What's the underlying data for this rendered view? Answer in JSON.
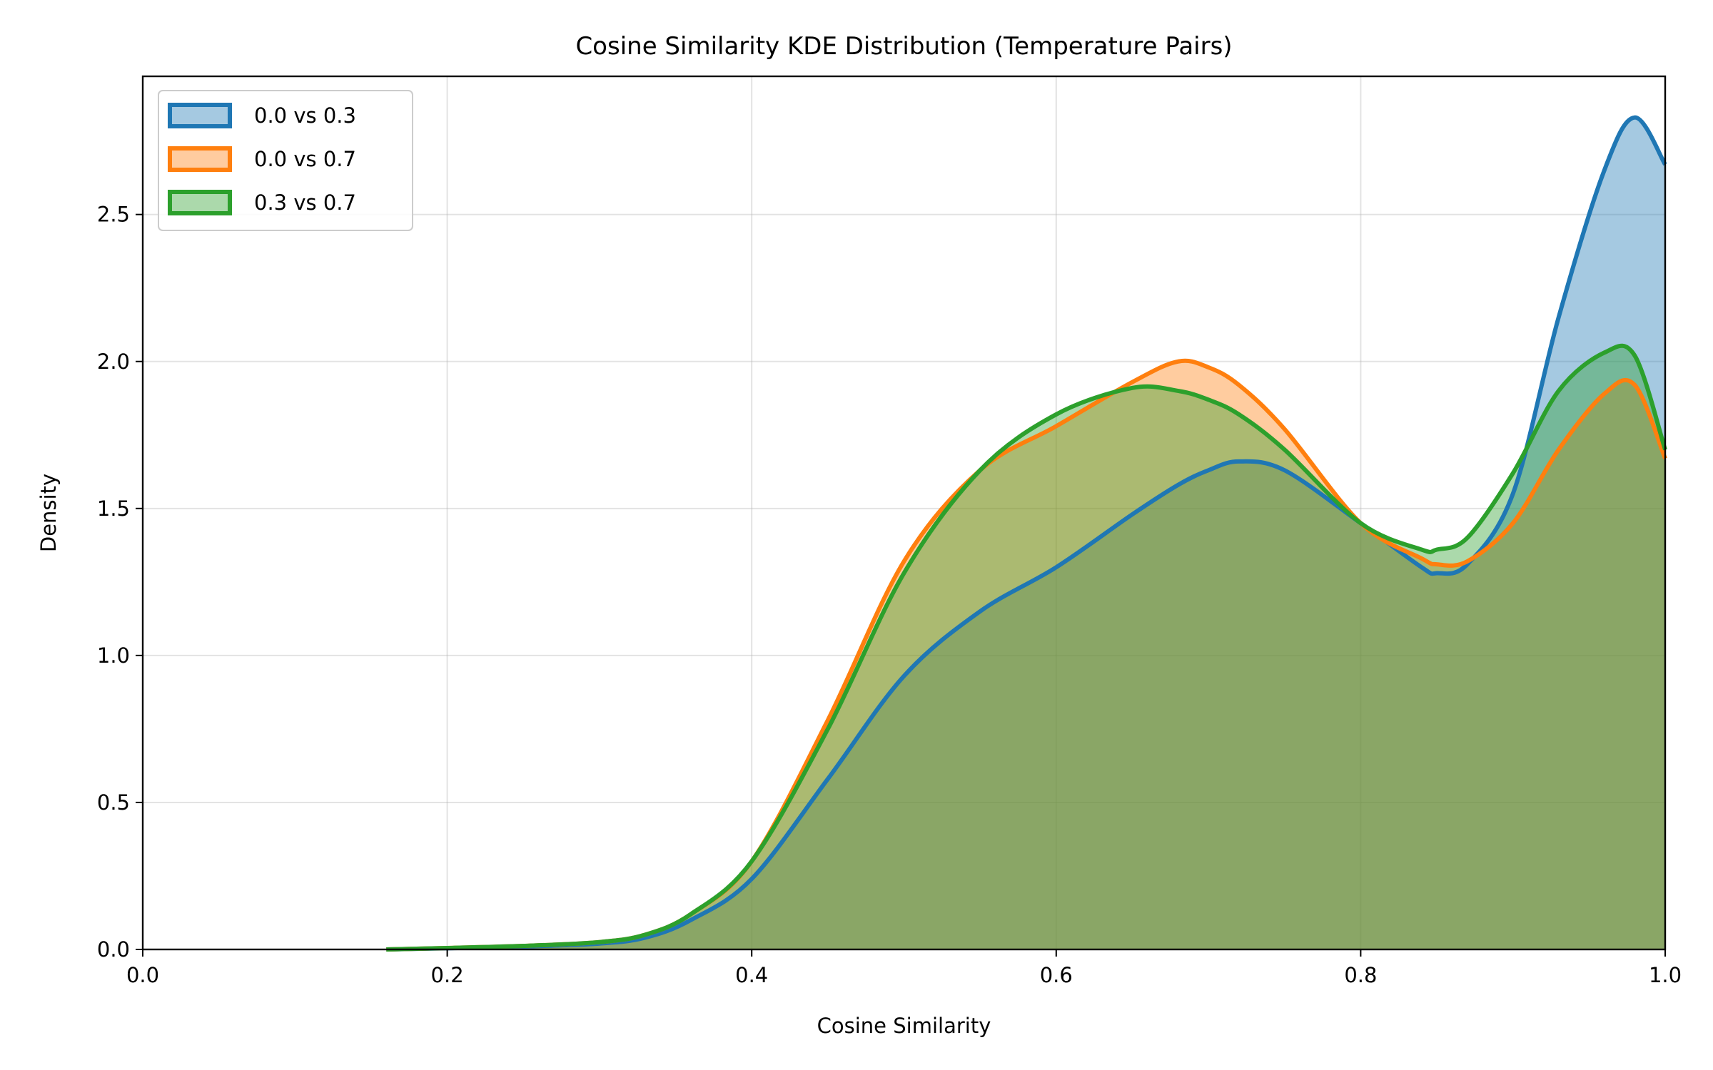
{
  "chart_data": {
    "type": "area",
    "title": "Cosine Similarity KDE Distribution (Temperature Pairs)",
    "xlabel": "Cosine Similarity",
    "ylabel": "Density",
    "xlim": [
      0.0,
      1.0
    ],
    "ylim": [
      0.0,
      2.97
    ],
    "xticks": [
      0.0,
      0.2,
      0.4,
      0.6,
      0.8,
      1.0
    ],
    "xtick_labels": [
      "0.0",
      "0.2",
      "0.4",
      "0.6",
      "0.8",
      "1.0"
    ],
    "yticks": [
      0.0,
      0.5,
      1.0,
      1.5,
      2.0,
      2.5
    ],
    "ytick_labels": [
      "0.0",
      "0.5",
      "1.0",
      "1.5",
      "2.0",
      "2.5"
    ],
    "grid": true,
    "legend_position": "top-left",
    "x": [
      0.16,
      0.2,
      0.25,
      0.3,
      0.33,
      0.36,
      0.4,
      0.45,
      0.5,
      0.55,
      0.6,
      0.65,
      0.68,
      0.7,
      0.72,
      0.75,
      0.8,
      0.84,
      0.85,
      0.87,
      0.9,
      0.93,
      0.96,
      0.98,
      1.0
    ],
    "series": [
      {
        "name": "0.0 vs 0.3",
        "color": "#1f77b4",
        "values": [
          0.0,
          0.004,
          0.01,
          0.02,
          0.04,
          0.1,
          0.24,
          0.58,
          0.93,
          1.15,
          1.3,
          1.48,
          1.58,
          1.63,
          1.66,
          1.63,
          1.45,
          1.3,
          1.28,
          1.31,
          1.55,
          2.15,
          2.65,
          2.83,
          2.67
        ]
      },
      {
        "name": "0.0 vs 0.7",
        "color": "#ff7f0e",
        "values": [
          0.0,
          0.005,
          0.012,
          0.025,
          0.05,
          0.12,
          0.3,
          0.78,
          1.32,
          1.63,
          1.78,
          1.93,
          2.0,
          1.98,
          1.92,
          1.77,
          1.45,
          1.33,
          1.31,
          1.32,
          1.45,
          1.7,
          1.89,
          1.92,
          1.67
        ]
      },
      {
        "name": "0.3 vs 0.7",
        "color": "#2ca02c",
        "values": [
          0.0,
          0.005,
          0.012,
          0.025,
          0.05,
          0.12,
          0.3,
          0.75,
          1.28,
          1.63,
          1.82,
          1.91,
          1.9,
          1.87,
          1.82,
          1.7,
          1.45,
          1.36,
          1.36,
          1.4,
          1.62,
          1.9,
          2.03,
          2.02,
          1.7
        ]
      }
    ]
  }
}
